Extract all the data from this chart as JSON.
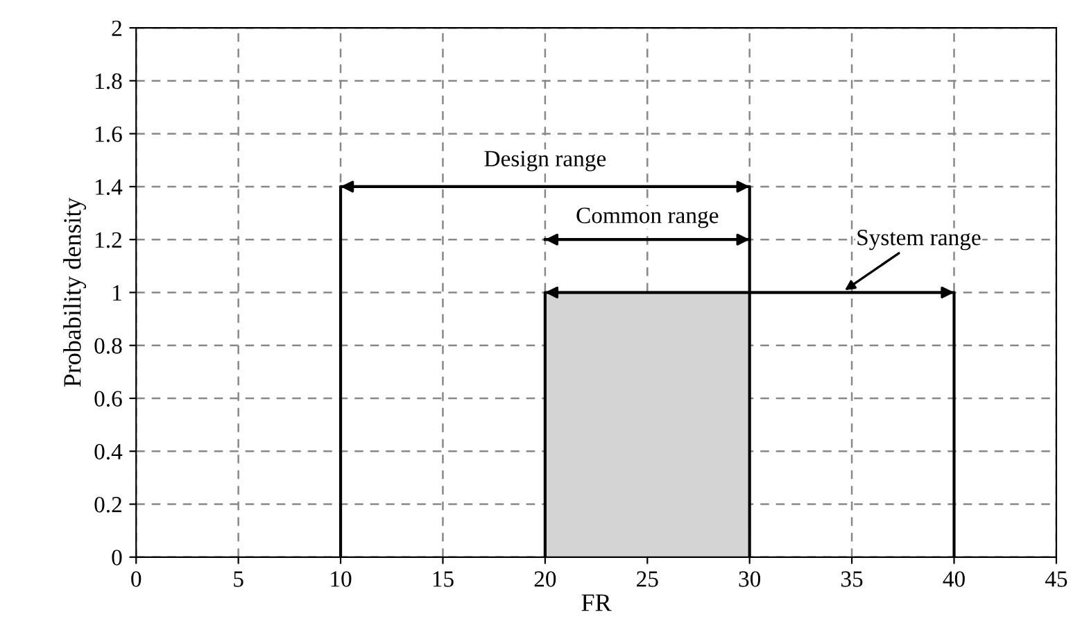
{
  "chart_data": {
    "type": "line",
    "xlabel": "FR",
    "ylabel": "Probability density",
    "series": [
      {
        "type": "area",
        "color": "#d4d4d4",
        "x": [
          20,
          30
        ],
        "values": [
          1,
          1
        ]
      },
      {
        "name": "Design range",
        "color": "#000000",
        "x": [
          10,
          10,
          30,
          30
        ],
        "values": [
          0,
          1.4,
          1.4,
          0
        ]
      },
      {
        "name": "Common range",
        "color": "#000000",
        "x": [
          20,
          30
        ],
        "values": [
          1.2,
          1.2
        ]
      },
      {
        "name": "System range",
        "color": "#000000",
        "x": [
          20,
          20,
          40,
          40
        ],
        "values": [
          0,
          1,
          1,
          0
        ]
      }
    ],
    "xlim": [
      0,
      45
    ],
    "xticks": [
      0,
      5,
      10,
      15,
      20,
      25,
      30,
      35,
      40,
      45
    ],
    "ylim": [
      0,
      2
    ],
    "yticks": [
      0,
      0.2,
      0.4,
      0.6,
      0.8,
      1,
      1.2,
      1.4,
      1.6,
      1.8,
      2
    ],
    "grid": true,
    "line_style": "solid"
  }
}
